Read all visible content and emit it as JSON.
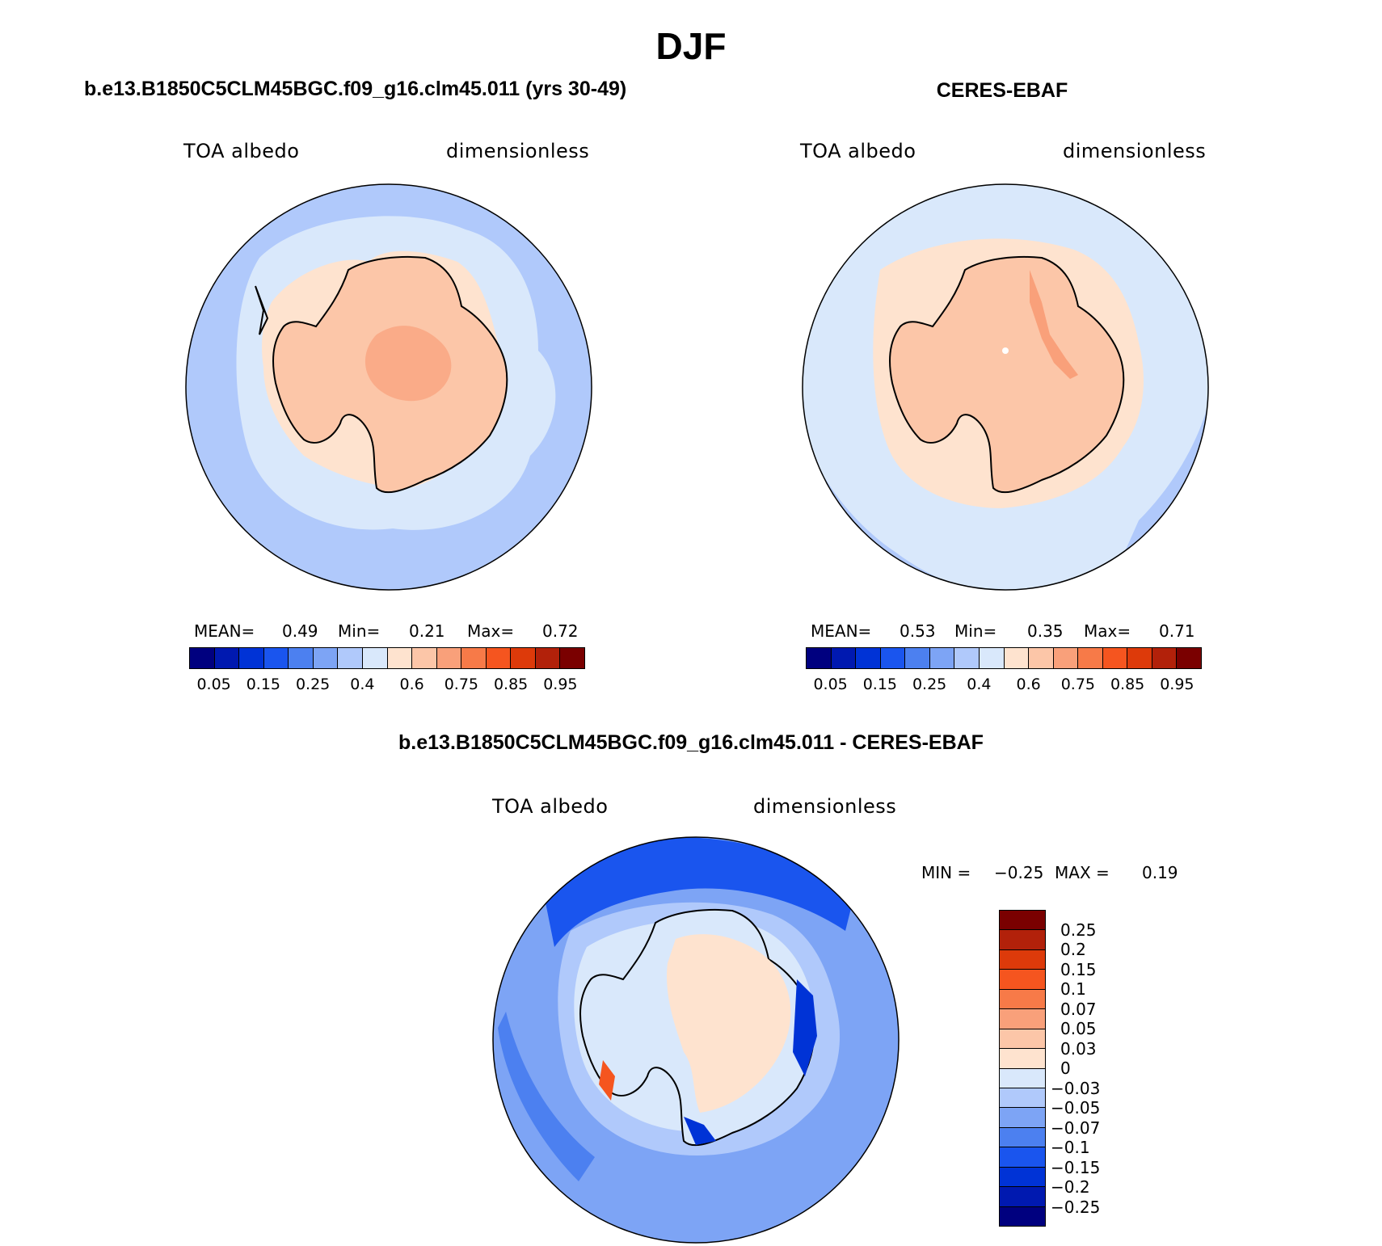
{
  "title": "DJF",
  "palette_abs": [
    "#00007f",
    "#0019b0",
    "#0033d6",
    "#1a55ee",
    "#4c80f0",
    "#7da4f5",
    "#b0c9fb",
    "#d9e8fb",
    "#fee3cf",
    "#fcc6a8",
    "#f9a07a",
    "#f77a48",
    "#f5551f",
    "#dd3a0a",
    "#b2210a",
    "#7a0000"
  ],
  "palette_diff": [
    "#7a0000",
    "#b2210a",
    "#dd3a0a",
    "#f5551f",
    "#f77a48",
    "#f9a07a",
    "#fcc6a8",
    "#fee3cf",
    "#d9e8fb",
    "#b0c9fb",
    "#7da4f5",
    "#4c80f0",
    "#1a55ee",
    "#0033d6",
    "#0019b0",
    "#00007f"
  ],
  "panels": [
    {
      "title": "b.e13.B1850C5CLM45BGC.f09_g16.clm45.011 (yrs 30-49)",
      "variable": "TOA albedo",
      "units": "dimensionless",
      "mean_label": "MEAN=",
      "mean": "0.49",
      "min_label": "Min=",
      "min": "0.21",
      "max_label": "Max=",
      "max": "0.72",
      "colorbar_ticks": [
        "0.05",
        "0.15",
        "0.25",
        "0.4",
        "0.6",
        "0.75",
        "0.85",
        "0.95"
      ]
    },
    {
      "title": "CERES-EBAF",
      "variable": "TOA albedo",
      "units": "dimensionless",
      "mean_label": "MEAN=",
      "mean": "0.53",
      "min_label": "Min=",
      "min": "0.35",
      "max_label": "Max=",
      "max": "0.71",
      "colorbar_ticks": [
        "0.05",
        "0.15",
        "0.25",
        "0.4",
        "0.6",
        "0.75",
        "0.85",
        "0.95"
      ]
    },
    {
      "title": "b.e13.B1850C5CLM45BGC.f09_g16.clm45.011 - CERES-EBAF",
      "variable": "TOA albedo",
      "units": "dimensionless",
      "min_label": "MIN =",
      "min": "−0.25",
      "max_label": "MAX =",
      "max": "0.19",
      "colorbar_ticks": [
        "0.25",
        "0.2",
        "0.15",
        "0.1",
        "0.07",
        "0.05",
        "0.03",
        "0",
        "−0.03",
        "−0.05",
        "−0.07",
        "−0.1",
        "−0.15",
        "−0.2",
        "−0.25"
      ]
    }
  ]
}
